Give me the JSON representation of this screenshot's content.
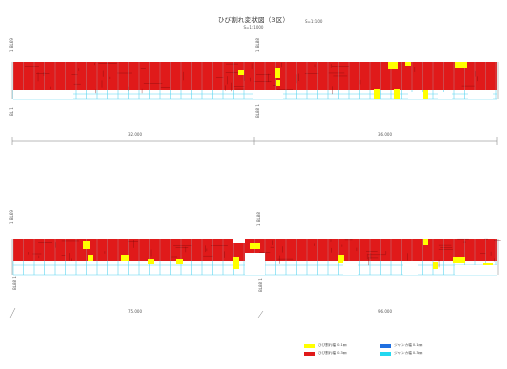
{
  "header": {
    "title": "ひび割れ変状図（3区）",
    "subtitle": "S=1:1000",
    "scale_note": "S=1:100"
  },
  "panels": [
    {
      "left_label_top": "1 BL69",
      "left_label_bottom": "BL 1",
      "right_label_top": "1 BL88",
      "right_label_bottom": "BL88 1",
      "dim_left": "32.000",
      "dim_right": "36.000"
    },
    {
      "left_label_top": "1 BL69",
      "left_label_bottom": "BL88 1",
      "right_label_top": "1 BL88",
      "right_label_bottom": "BL88 1",
      "dim_left": "75.000",
      "dim_right": "96.000"
    }
  ],
  "legend": [
    {
      "label": "ひび割れ幅 0.1㎜",
      "color": "#ffff00"
    },
    {
      "label": "ひび割れ幅 0.3㎜",
      "color": "#e01a1a"
    },
    {
      "label": "ジャンカ幅 0.1㎜",
      "color": "#1f6fe0"
    },
    {
      "label": "ジャンカ幅 0.3㎜",
      "color": "#22d8f0"
    }
  ],
  "colors": {
    "red": "#e01a1a",
    "yellow": "#ffff00",
    "cyan": "#5cd6f0",
    "grid": "#9ad9e8"
  }
}
